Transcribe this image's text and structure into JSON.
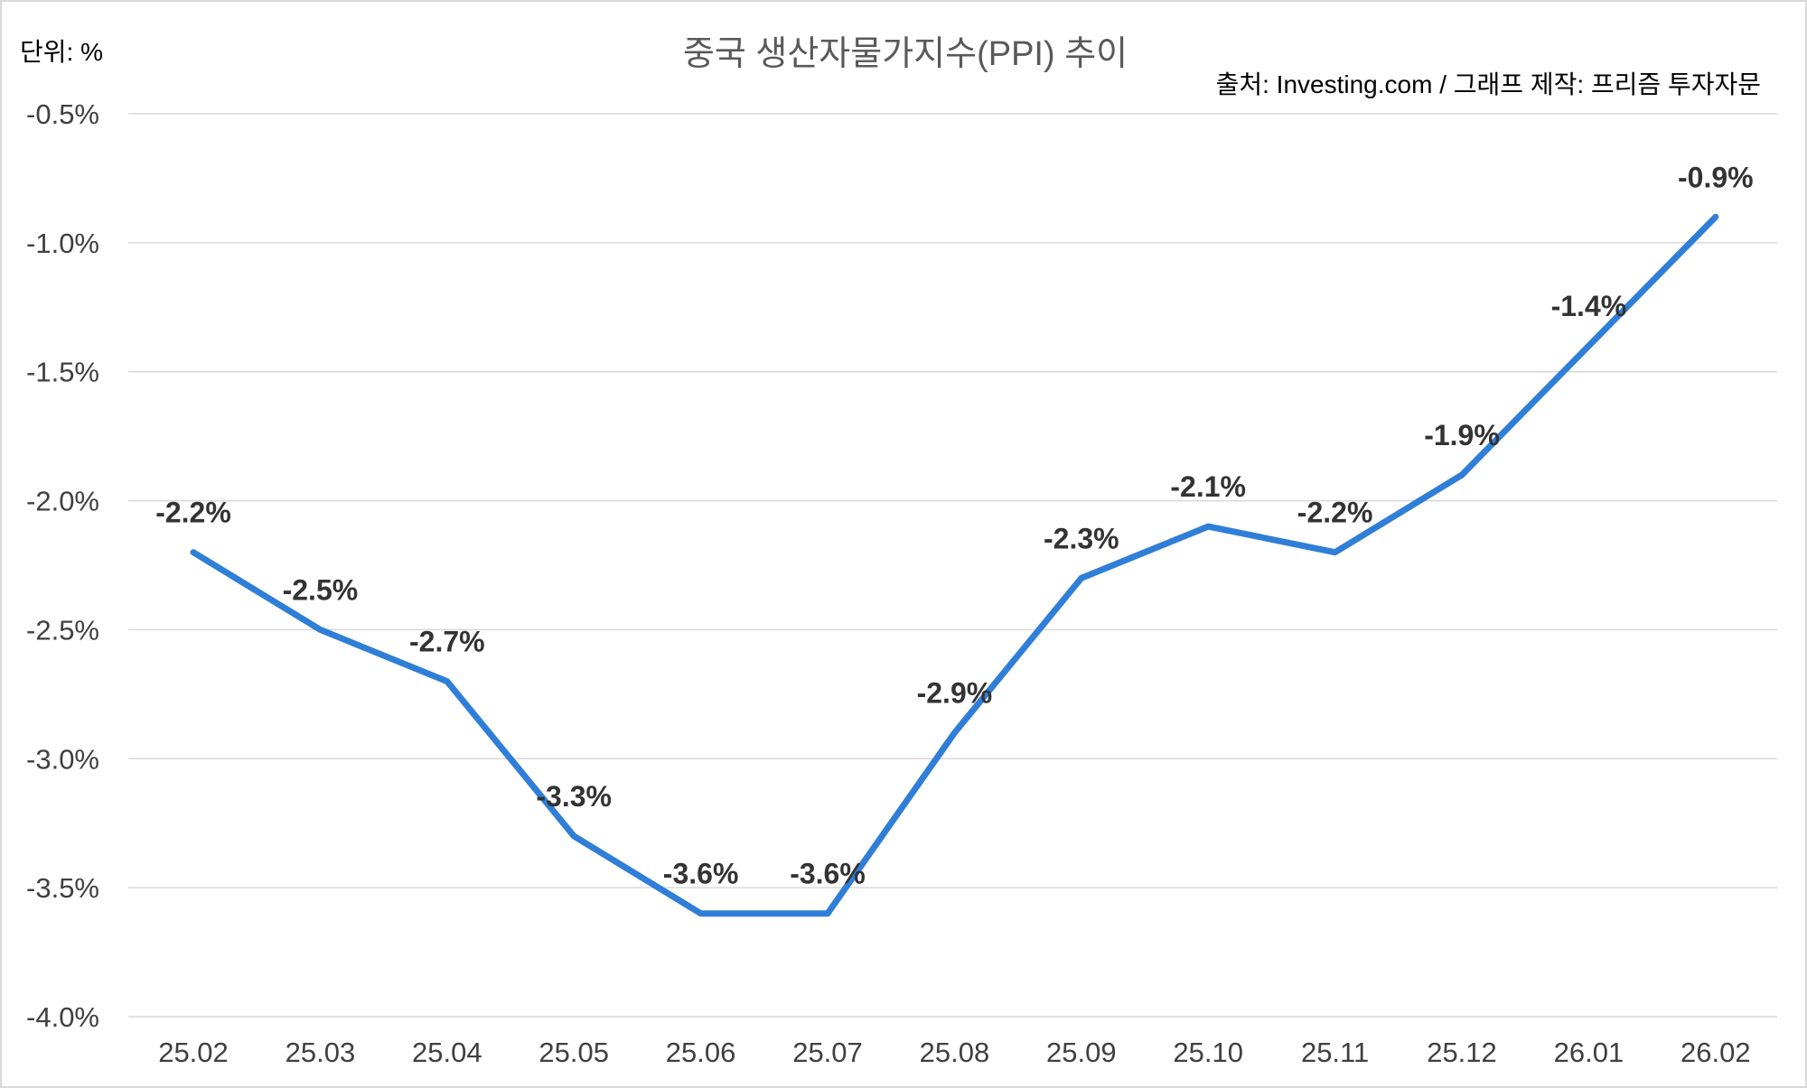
{
  "chart_data": {
    "type": "line",
    "title": "중국 생산자물가지수(PPI) 추이",
    "unit_label": "단위: %",
    "source_label": "출처: Investing.com / 그래프 제작: 프리즘 투자자문",
    "categories": [
      "25.02",
      "25.03",
      "25.04",
      "25.05",
      "25.06",
      "25.07",
      "25.08",
      "25.09",
      "25.10",
      "25.11",
      "25.12",
      "26.01",
      "26.02"
    ],
    "series": [
      {
        "values": [
          -2.2,
          -2.5,
          -2.7,
          -3.3,
          -3.6,
          -3.6,
          -2.9,
          -2.3,
          -2.1,
          -2.2,
          -1.9,
          -1.4,
          -0.9
        ],
        "color": "#2f7ed8"
      }
    ],
    "data_labels": [
      "-2.2%",
      "-2.5%",
      "-2.7%",
      "-3.3%",
      "-3.6%",
      "-3.6%",
      "-2.9%",
      "-2.3%",
      "-2.1%",
      "-2.2%",
      "-1.9%",
      "-1.4%",
      "-0.9%"
    ],
    "ylim": [
      -4.0,
      -0.5
    ],
    "yticks": [
      -0.5,
      -1.0,
      -1.5,
      -2.0,
      -2.5,
      -3.0,
      -3.5,
      -4.0
    ],
    "ytick_labels": [
      "-0.5%",
      "-1.0%",
      "-1.5%",
      "-2.0%",
      "-2.5%",
      "-3.0%",
      "-3.5%",
      "-4.0%"
    ],
    "grid": true,
    "legend": "none"
  }
}
